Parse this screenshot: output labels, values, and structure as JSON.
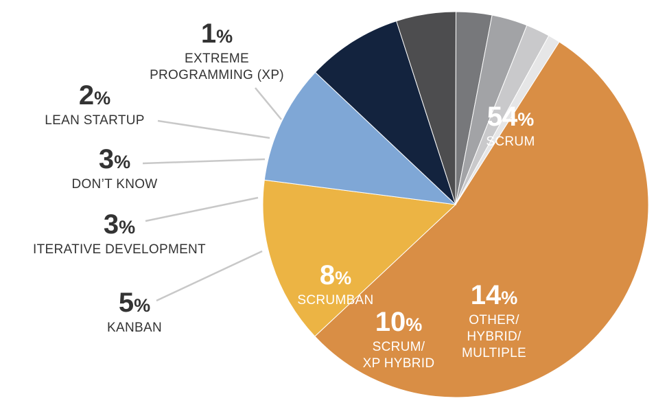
{
  "chart_data": {
    "type": "pie",
    "title": "",
    "slices": [
      {
        "label": "SCRUM",
        "label_lines": [
          "SCRUM"
        ],
        "value": 54,
        "value_text": "54",
        "color": "#D98E45",
        "text_color": "#ffffff",
        "placement": "inside"
      },
      {
        "label": "OTHER/ HYBRID/ MULTIPLE",
        "label_lines": [
          "OTHER/",
          "HYBRID/",
          "MULTIPLE"
        ],
        "value": 14,
        "value_text": "14",
        "color": "#ECB444",
        "text_color": "#ffffff",
        "placement": "inside"
      },
      {
        "label": "SCRUM/ XP HYBRID",
        "label_lines": [
          "SCRUM/",
          "XP HYBRID"
        ],
        "value": 10,
        "value_text": "10",
        "color": "#7FA7D6",
        "text_color": "#ffffff",
        "placement": "inside"
      },
      {
        "label": "SCRUMBAN",
        "label_lines": [
          "SCRUMBAN"
        ],
        "value": 8,
        "value_text": "8",
        "color": "#13233E",
        "text_color": "#ffffff",
        "placement": "inside"
      },
      {
        "label": "KANBAN",
        "label_lines": [
          "KANBAN"
        ],
        "value": 5,
        "value_text": "5",
        "color": "#4D4D4F",
        "text_color": "#333333",
        "placement": "outside"
      },
      {
        "label": "ITERATIVE DEVELOPMENT",
        "label_lines": [
          "ITERATIVE DEVELOPMENT"
        ],
        "value": 3,
        "value_text": "3",
        "color": "#77787B",
        "text_color": "#333333",
        "placement": "outside"
      },
      {
        "label": "DON'T KNOW",
        "label_lines": [
          "DON’T KNOW"
        ],
        "value": 3,
        "value_text": "3",
        "color": "#A2A3A6",
        "text_color": "#333333",
        "placement": "outside"
      },
      {
        "label": "LEAN STARTUP",
        "label_lines": [
          "LEAN STARTUP"
        ],
        "value": 2,
        "value_text": "2",
        "color": "#C9C9CB",
        "text_color": "#333333",
        "placement": "outside"
      },
      {
        "label": "EXTREME PROGRAMMING (XP)",
        "label_lines": [
          "EXTREME",
          "PROGRAMMING (XP)"
        ],
        "value": 1,
        "value_text": "1",
        "color": "#E6E6E7",
        "text_color": "#333333",
        "placement": "outside"
      }
    ],
    "percent_symbol": "%",
    "legend": "none"
  }
}
